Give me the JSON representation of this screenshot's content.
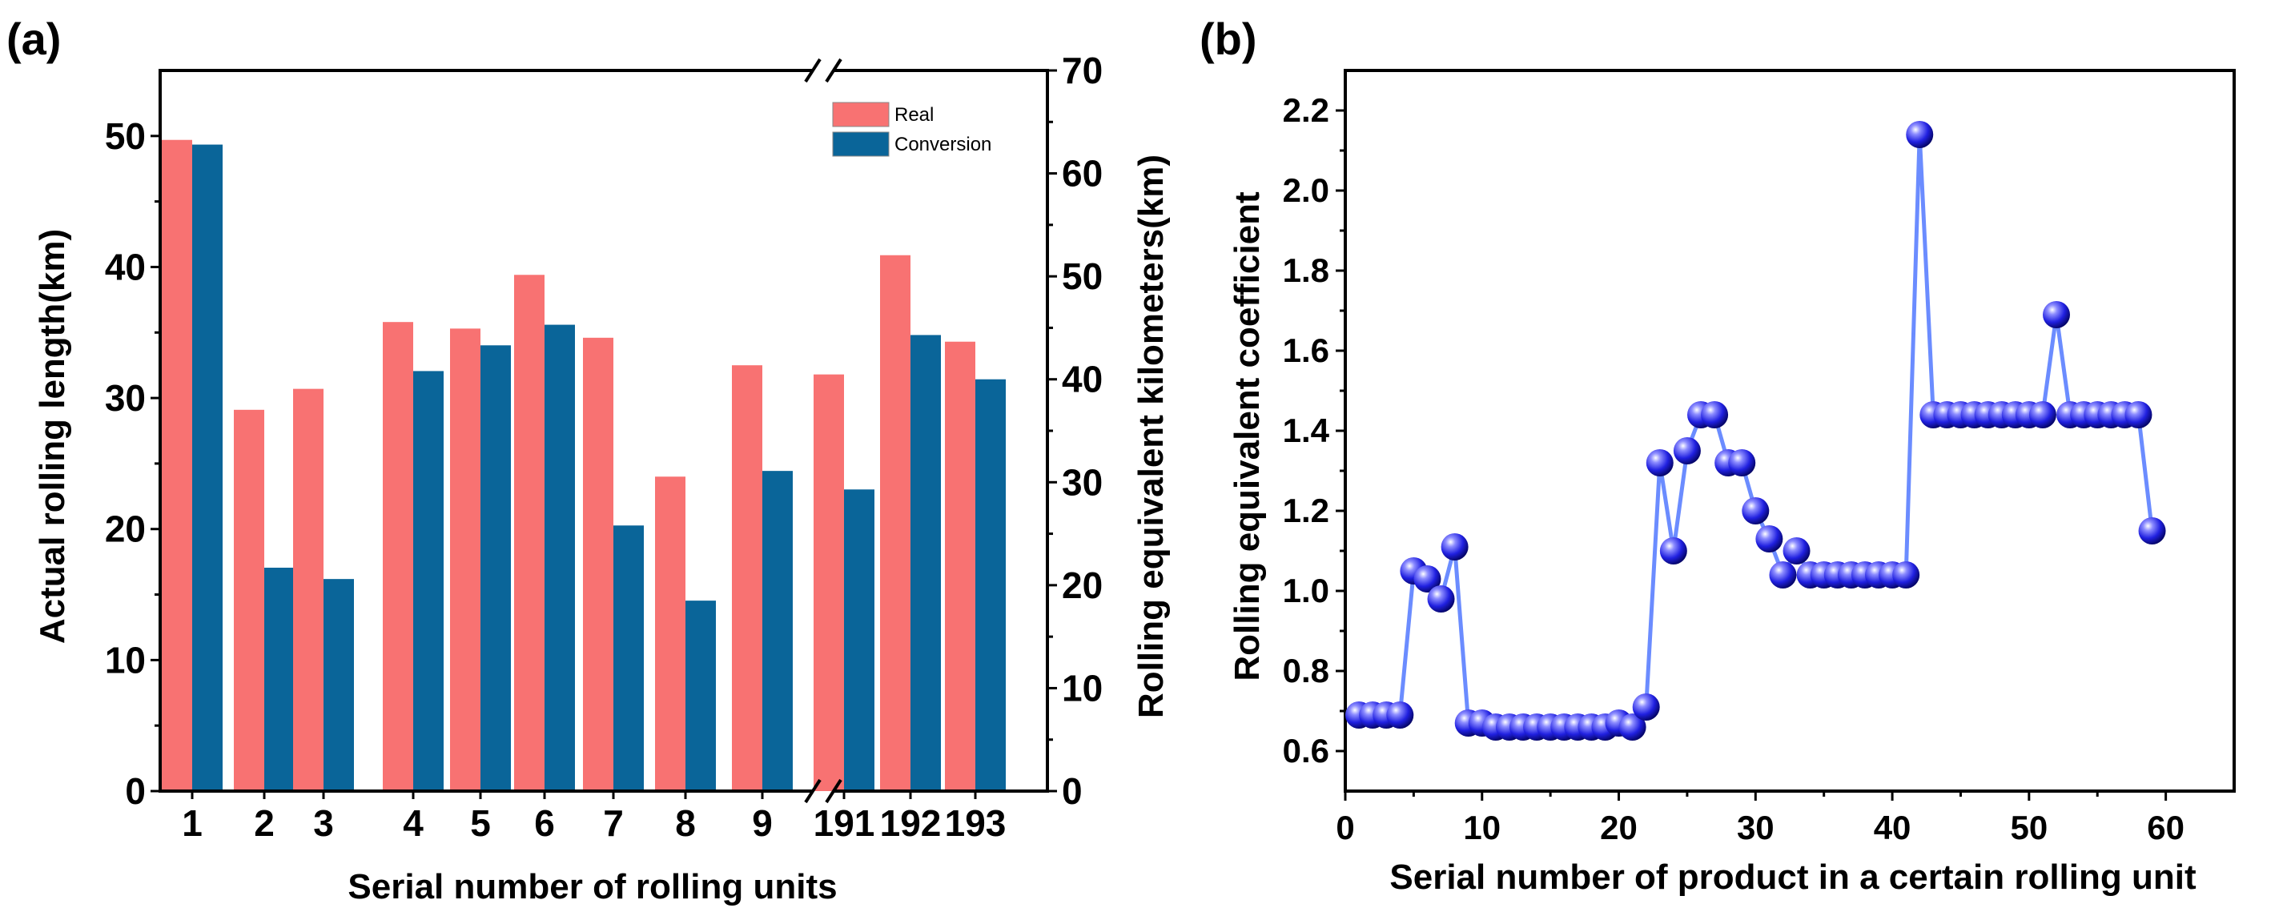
{
  "chart_data": [
    {
      "panel": "(a)",
      "type": "bar",
      "xlabel": "Serial number of rolling units",
      "ylabel": "Actual rolling length(km)",
      "y2label": "Rolling equivalent kilometers(km)",
      "categories": [
        "1",
        "2",
        "3",
        "4",
        "5",
        "6",
        "7",
        "8",
        "9",
        "191",
        "192",
        "193"
      ],
      "axis_break": "between 9 and 191",
      "ylim": [
        0,
        55
      ],
      "yticks": [
        0,
        10,
        20,
        30,
        40,
        50
      ],
      "y2lim": [
        0,
        70
      ],
      "y2ticks": [
        0,
        10,
        20,
        30,
        40,
        50,
        60,
        70
      ],
      "series": [
        {
          "name": "Real",
          "axis": "left",
          "color": "#f87272",
          "values": [
            49.7,
            29.1,
            30.7,
            35.8,
            35.3,
            39.4,
            34.6,
            24.0,
            32.5,
            31.8,
            40.9,
            34.3
          ]
        },
        {
          "name": "Conversion",
          "axis": "right",
          "color": "#0a6599",
          "values": [
            62.8,
            21.7,
            20.6,
            40.8,
            43.3,
            45.3,
            25.8,
            18.5,
            31.1,
            29.3,
            44.3,
            40.0
          ]
        }
      ],
      "legend": "top-right"
    },
    {
      "panel": "(b)",
      "type": "line",
      "xlabel": "Serial number of product in a certain rolling unit",
      "ylabel": "Rolling equivalent coefficient",
      "xlim": [
        0,
        65
      ],
      "xticks": [
        0,
        10,
        20,
        30,
        40,
        50,
        60
      ],
      "ylim": [
        0.5,
        2.3
      ],
      "yticks": [
        0.6,
        0.8,
        1.0,
        1.2,
        1.4,
        1.6,
        1.8,
        2.0,
        2.2
      ],
      "marker": "sphere",
      "line_color": "#6b8cff",
      "marker_color": "#1f1fd0",
      "x": [
        1,
        2,
        3,
        4,
        5,
        6,
        7,
        8,
        9,
        10,
        11,
        12,
        13,
        14,
        15,
        16,
        17,
        18,
        19,
        20,
        21,
        22,
        23,
        24,
        25,
        26,
        27,
        28,
        29,
        30,
        31,
        32,
        33,
        34,
        35,
        36,
        37,
        38,
        39,
        40,
        41,
        42,
        43,
        44,
        45,
        46,
        47,
        48,
        49,
        50,
        51,
        52,
        53,
        54,
        55,
        56,
        57,
        58,
        59
      ],
      "y": [
        0.69,
        0.69,
        0.69,
        0.69,
        1.05,
        1.03,
        0.98,
        1.11,
        0.67,
        0.67,
        0.66,
        0.66,
        0.66,
        0.66,
        0.66,
        0.66,
        0.66,
        0.66,
        0.66,
        0.67,
        0.66,
        0.71,
        1.32,
        1.1,
        1.35,
        1.44,
        1.44,
        1.32,
        1.32,
        1.2,
        1.13,
        1.04,
        1.1,
        1.04,
        1.04,
        1.04,
        1.04,
        1.04,
        1.04,
        1.04,
        1.04,
        2.14,
        1.44,
        1.44,
        1.44,
        1.44,
        1.44,
        1.44,
        1.44,
        1.44,
        1.44,
        1.69,
        1.44,
        1.44,
        1.44,
        1.44,
        1.44,
        1.44,
        1.15
      ]
    }
  ]
}
